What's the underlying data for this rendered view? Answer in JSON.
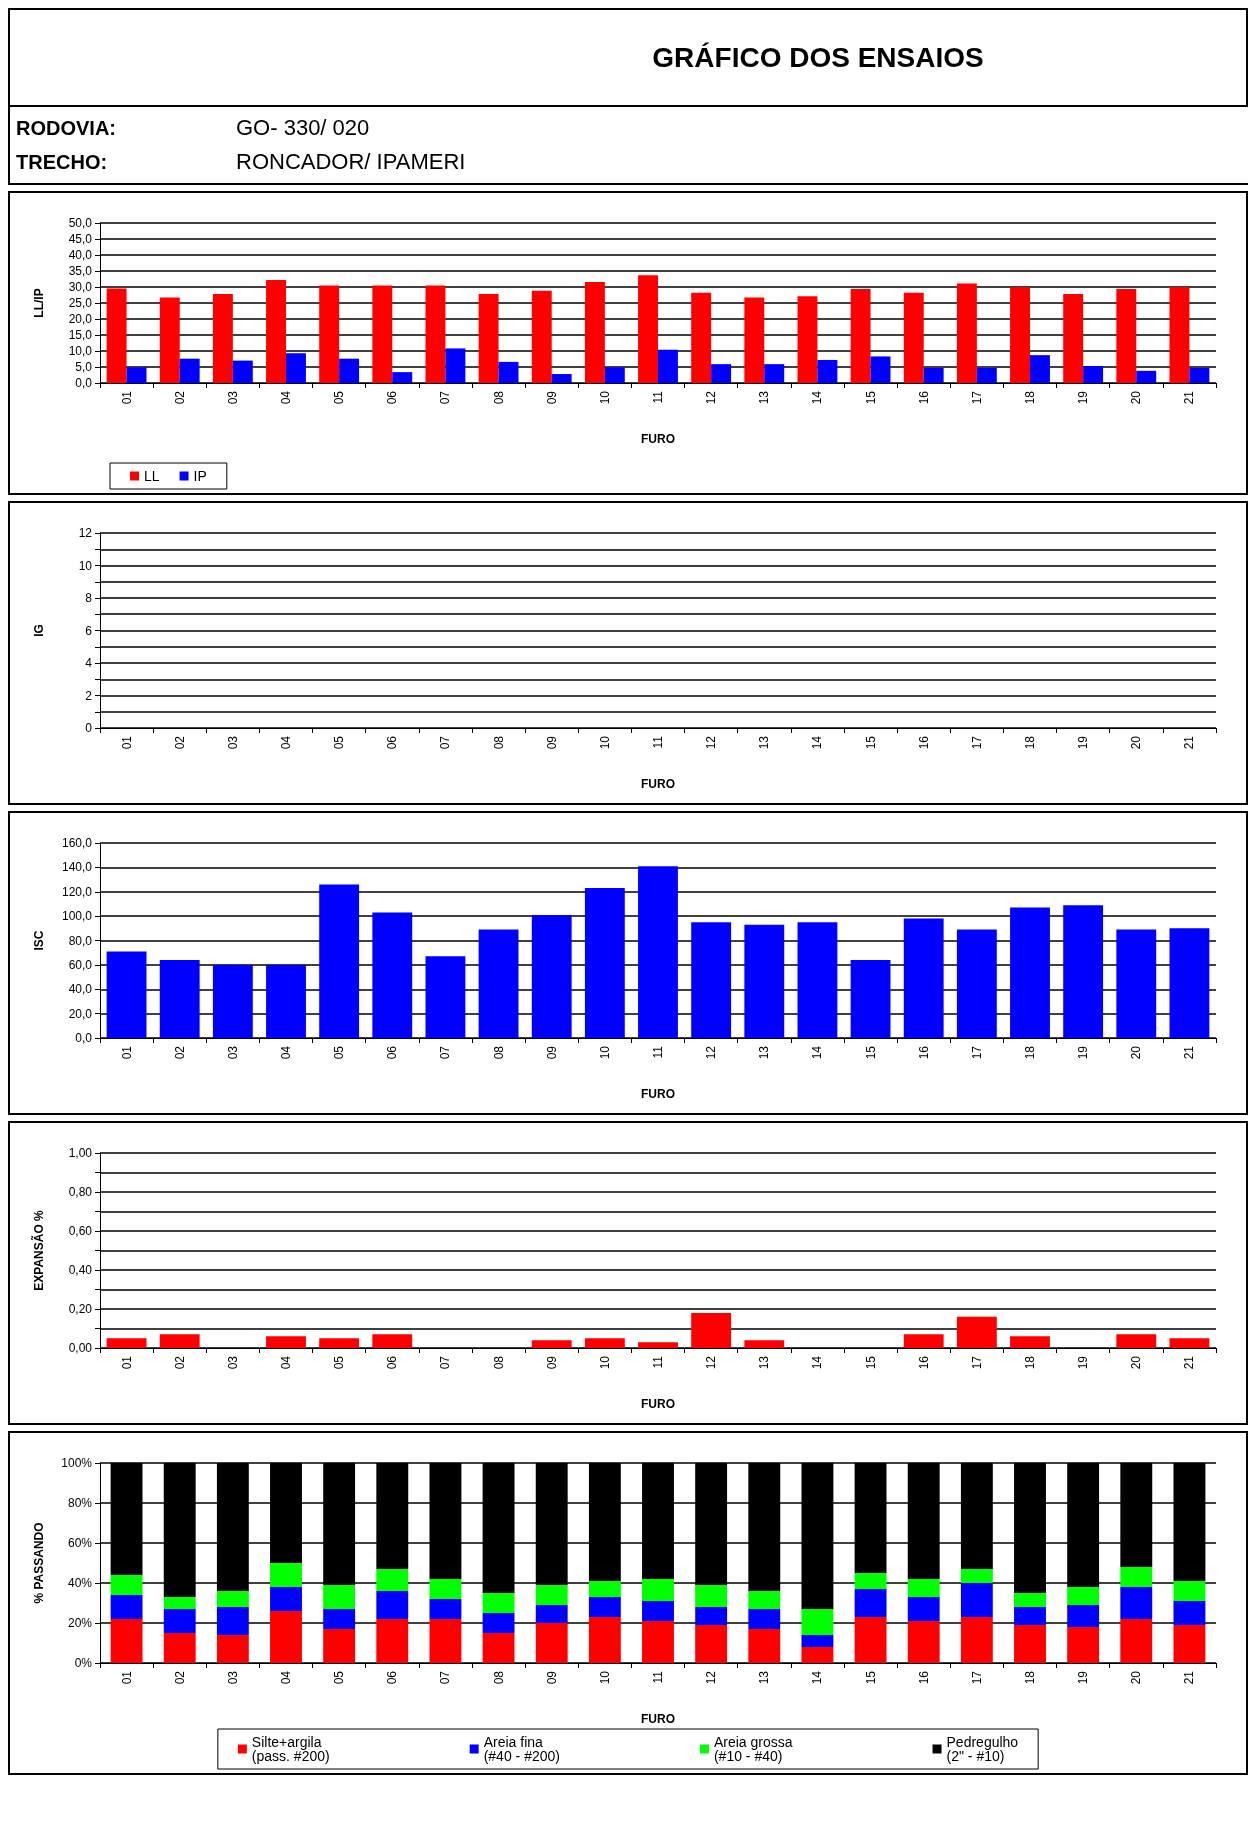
{
  "chart_data": [
    {
      "type": "bar",
      "title": "GRÁFICO DOS  ENSAIOS",
      "annotations": [
        "RODOVIA:",
        "GO- 330/ 020",
        "TRECHO:",
        "RONCADOR/ IPAMERI"
      ],
      "xlabel": "FURO",
      "ylabel": "LL/IP",
      "categories": [
        "01",
        "02",
        "03",
        "04",
        "05",
        "06",
        "07",
        "08",
        "09",
        "10",
        "11",
        "12",
        "13",
        "14",
        "15",
        "16",
        "17",
        "18",
        "19",
        "20",
        "21"
      ],
      "series": [
        {
          "name": "LL",
          "color": "#ff0000",
          "values": [
            29.5,
            26.7,
            27.8,
            32.2,
            30.5,
            30.5,
            30.5,
            27.8,
            28.8,
            31.6,
            33.7,
            28.2,
            26.7,
            27.1,
            29.4,
            28.2,
            31.1,
            29.9,
            27.8,
            29.4,
            29.9
          ]
        },
        {
          "name": "IP",
          "color": "#0000ff",
          "values": [
            4.9,
            7.6,
            7.0,
            9.3,
            7.6,
            3.4,
            10.8,
            6.6,
            2.8,
            4.9,
            10.4,
            5.9,
            5.9,
            7.2,
            8.3,
            4.7,
            4.7,
            8.7,
            5.3,
            3.8,
            4.7
          ]
        }
      ],
      "ylim": [
        0,
        50
      ],
      "yticks": [
        {
          "value": 0,
          "label": "0,0"
        },
        {
          "value": 5,
          "label": "5,0"
        },
        {
          "value": 10,
          "label": "10,0"
        },
        {
          "value": 15,
          "label": "15,0"
        },
        {
          "value": 20,
          "label": "20,0"
        },
        {
          "value": 25,
          "label": "25,0"
        },
        {
          "value": 30,
          "label": "30,0"
        },
        {
          "value": 35,
          "label": "35,0"
        },
        {
          "value": 40,
          "label": "40,0"
        },
        {
          "value": 45,
          "label": "45,0"
        },
        {
          "value": 50,
          "label": "50,0"
        }
      ],
      "grid": "y",
      "legend": "bottom left"
    },
    {
      "type": "bar",
      "xlabel": "FURO",
      "ylabel": "IG",
      "categories": [
        "01",
        "02",
        "03",
        "04",
        "05",
        "06",
        "07",
        "08",
        "09",
        "10",
        "11",
        "12",
        "13",
        "14",
        "15",
        "16",
        "17",
        "18",
        "19",
        "20",
        "21"
      ],
      "values": [
        null,
        null,
        null,
        null,
        null,
        null,
        null,
        null,
        null,
        null,
        null,
        null,
        null,
        null,
        null,
        null,
        null,
        null,
        null,
        null,
        null
      ],
      "ylim": [
        0,
        12
      ],
      "yticks": [
        0,
        {
          "value": 1,
          "label": null
        },
        2,
        {
          "value": 3,
          "label": null
        },
        4,
        {
          "value": 5,
          "label": null
        },
        6,
        {
          "value": 7,
          "label": null
        },
        8,
        {
          "value": 9,
          "label": null
        },
        10,
        {
          "value": 11,
          "label": null
        },
        12
      ],
      "grid": "y"
    },
    {
      "type": "bar",
      "xlabel": "FURO",
      "ylabel": "ISC",
      "categories": [
        "01",
        "02",
        "03",
        "04",
        "05",
        "06",
        "07",
        "08",
        "09",
        "10",
        "11",
        "12",
        "13",
        "14",
        "15",
        "16",
        "17",
        "18",
        "19",
        "20",
        "21"
      ],
      "values": [
        71,
        64,
        60,
        60,
        126,
        103,
        67,
        89,
        101,
        123,
        141,
        95,
        93,
        95,
        64,
        98,
        89,
        107,
        109,
        89,
        90
      ],
      "color": "#0000ff",
      "ylim": [
        0,
        160
      ],
      "yticks": [
        {
          "value": 0,
          "label": "0,0"
        },
        {
          "value": 20,
          "label": "20,0"
        },
        {
          "value": 40,
          "label": "40,0"
        },
        {
          "value": 60,
          "label": "60,0"
        },
        {
          "value": 80,
          "label": "80,0"
        },
        {
          "value": 100,
          "label": "100,0"
        },
        {
          "value": 120,
          "label": "120,0"
        },
        {
          "value": 140,
          "label": "140,0"
        },
        {
          "value": 160,
          "label": "160,0"
        }
      ],
      "grid": "y"
    },
    {
      "type": "bar",
      "xlabel": "FURO",
      "ylabel": "EXPANSÃO %",
      "categories": [
        "01",
        "02",
        "03",
        "04",
        "05",
        "06",
        "07",
        "08",
        "09",
        "10",
        "11",
        "12",
        "13",
        "14",
        "15",
        "16",
        "17",
        "18",
        "19",
        "20",
        "21"
      ],
      "values": [
        0.05,
        0.07,
        null,
        0.06,
        0.05,
        0.07,
        null,
        null,
        0.04,
        0.05,
        0.03,
        0.18,
        0.04,
        null,
        null,
        0.07,
        0.16,
        0.06,
        null,
        0.07,
        0.05
      ],
      "color": "#ff0000",
      "ylim": [
        0,
        1
      ],
      "yticks": [
        {
          "value": 0,
          "label": "0,00"
        },
        {
          "value": 0.1,
          "label": null
        },
        {
          "value": 0.2,
          "label": "0,20"
        },
        {
          "value": 0.3,
          "label": null
        },
        {
          "value": 0.4,
          "label": "0,40"
        },
        {
          "value": 0.5,
          "label": null
        },
        {
          "value": 0.6,
          "label": "0,60"
        },
        {
          "value": 0.7,
          "label": null
        },
        {
          "value": 0.8,
          "label": "0,80"
        },
        {
          "value": 0.9,
          "label": null
        },
        {
          "value": 1,
          "label": "1,00"
        }
      ],
      "grid": "y"
    },
    {
      "type": "bar",
      "stacked": true,
      "xlabel": "FURO",
      "ylabel": "% PASSANDO",
      "categories": [
        "01",
        "02",
        "03",
        "04",
        "05",
        "06",
        "07",
        "08",
        "09",
        "10",
        "11",
        "12",
        "13",
        "14",
        "15",
        "16",
        "17",
        "18",
        "19",
        "20",
        "21"
      ],
      "series": [
        {
          "name": "Silte+argila\n(pass. #200)",
          "color": "#ff0000",
          "values": [
            22,
            15,
            14,
            26,
            17,
            22,
            22,
            15,
            20,
            23,
            21,
            19,
            17,
            8,
            23,
            21,
            23,
            19,
            18,
            22,
            19
          ]
        },
        {
          "name": "Areia fina\n(#40 - #200)",
          "color": "#0000ff",
          "values": [
            12,
            12,
            14,
            12,
            10,
            14,
            10,
            10,
            9,
            10,
            10,
            9,
            10,
            6,
            14,
            12,
            17,
            9,
            11,
            16,
            12
          ]
        },
        {
          "name": "Areia grossa\n(#10 - #40)",
          "color": "#00ff00",
          "values": [
            10,
            6,
            8,
            12,
            12,
            11,
            10,
            10,
            10,
            8,
            11,
            11,
            9,
            13,
            8,
            9,
            7,
            7,
            9,
            10,
            10
          ]
        },
        {
          "name": "Pedregulho\n(2\" - #10)",
          "color": "#000000",
          "values": [
            56,
            67,
            64,
            50,
            61,
            53,
            58,
            65,
            61,
            59,
            58,
            61,
            64,
            73,
            55,
            58,
            53,
            65,
            62,
            52,
            59
          ]
        }
      ],
      "ylim": [
        0,
        100
      ],
      "yticks": [
        {
          "value": 0,
          "label": "0%"
        },
        {
          "value": 20,
          "label": "20%"
        },
        {
          "value": 40,
          "label": "40%"
        },
        {
          "value": 60,
          "label": "60%"
        },
        {
          "value": 80,
          "label": "80%"
        },
        {
          "value": 100,
          "label": "100%"
        }
      ],
      "grid": "y",
      "legend": "bottom"
    }
  ]
}
